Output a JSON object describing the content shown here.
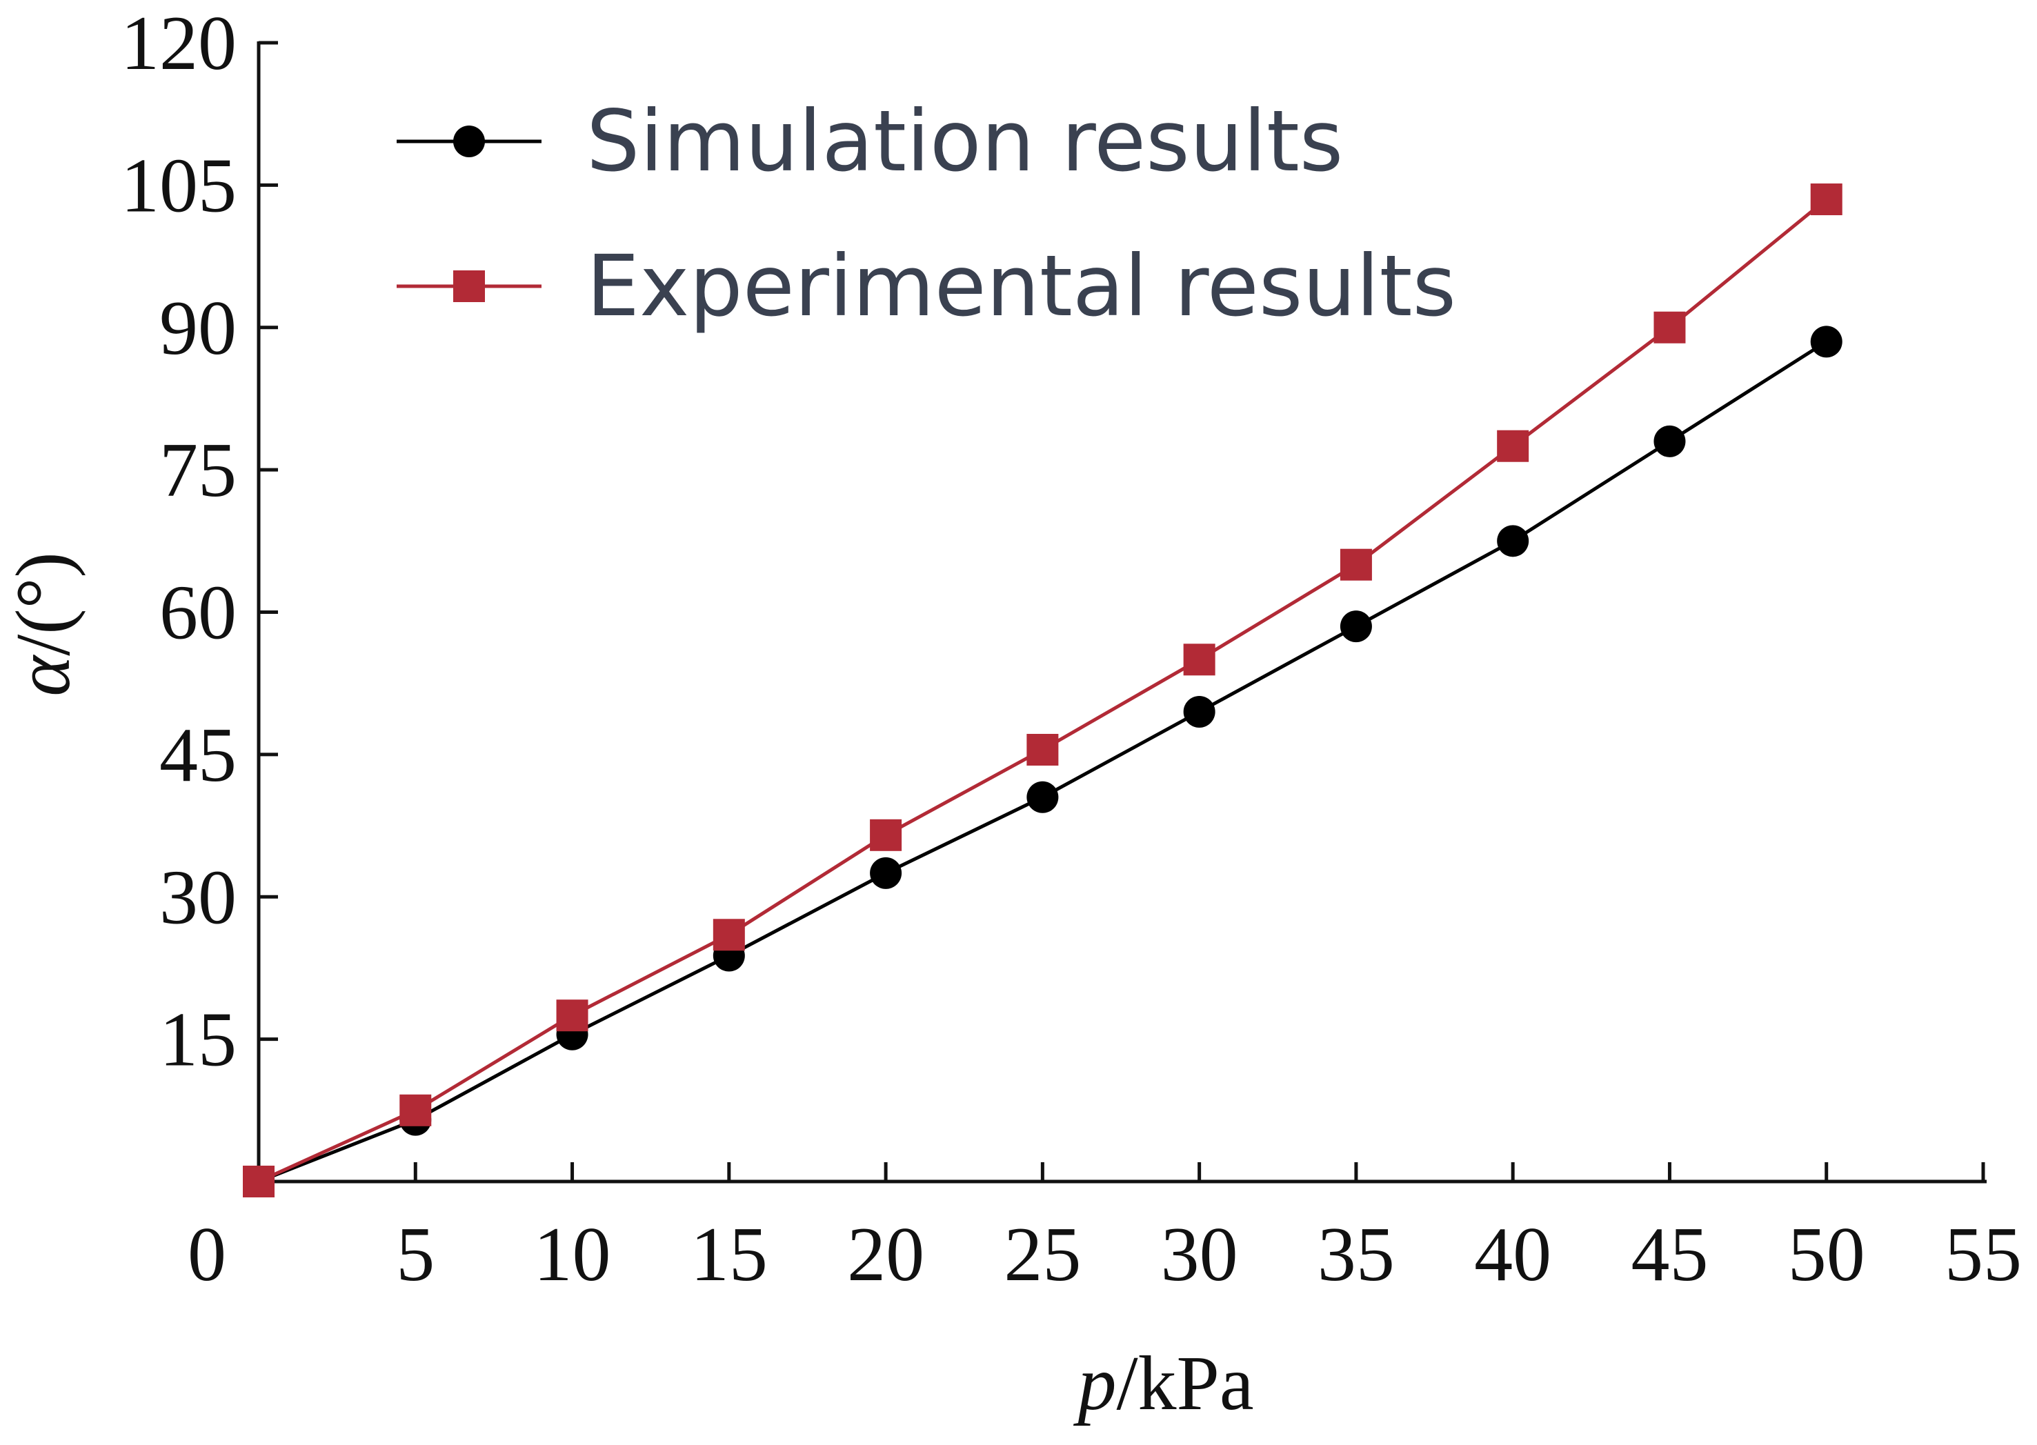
{
  "chart_data": {
    "type": "line",
    "title": "",
    "xlabel": {
      "symbol": "p",
      "unit": "/kPa"
    },
    "ylabel": {
      "symbol": "α",
      "unit": "/(°)"
    },
    "xlim": [
      0,
      55
    ],
    "ylim": [
      0,
      120
    ],
    "x_ticks": [
      0,
      5,
      10,
      15,
      20,
      25,
      30,
      35,
      40,
      45,
      50,
      55
    ],
    "y_ticks": [
      15,
      30,
      45,
      60,
      75,
      90,
      105,
      120
    ],
    "grid": false,
    "legend_position": "top-left",
    "series": [
      {
        "name": "Simulation results",
        "color": "#000000",
        "marker": "circle",
        "x": [
          0,
          5,
          10,
          15,
          20,
          25,
          30,
          35,
          40,
          45,
          50
        ],
        "y": [
          0,
          6.5,
          15.5,
          23.8,
          32.5,
          40.5,
          49.5,
          58.5,
          67.5,
          78,
          88.5
        ]
      },
      {
        "name": "Experimental results",
        "color": "#b22a36",
        "marker": "square",
        "x": [
          0,
          5,
          10,
          15,
          20,
          25,
          30,
          35,
          40,
          45,
          50
        ],
        "y": [
          0,
          7.5,
          17.5,
          26,
          36.5,
          45.5,
          55,
          65,
          77.5,
          90,
          103.5
        ]
      }
    ]
  }
}
